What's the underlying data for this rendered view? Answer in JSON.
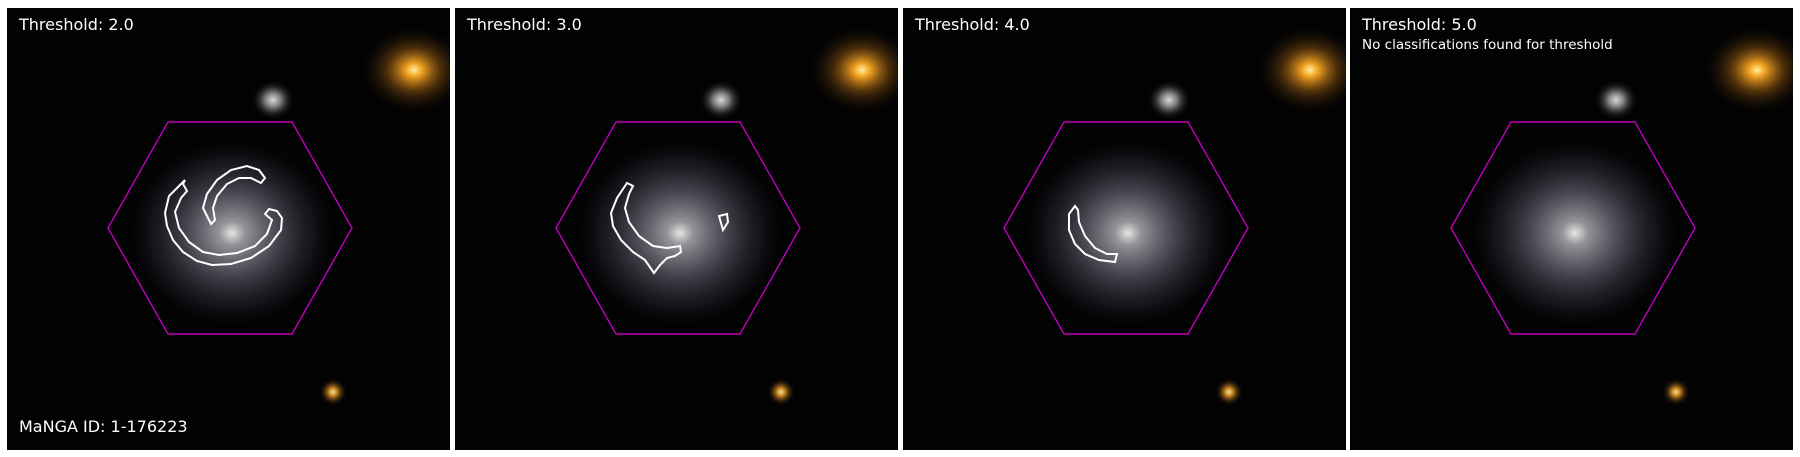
{
  "panels": [
    {
      "title": "Threshold: 2.0",
      "note": ""
    },
    {
      "title": "Threshold: 3.0",
      "note": ""
    },
    {
      "title": "Threshold: 4.0",
      "note": ""
    },
    {
      "title": "Threshold: 5.0",
      "note": "No classifications found for threshold"
    }
  ],
  "manga_id_label": "MaNGA ID: 1-176223",
  "colors": {
    "hexagon": "#c000c0",
    "contour": "#ffffff",
    "background": "#020203",
    "star": "#f0a020"
  },
  "icons": [
    "galaxy-image",
    "hexagon-outline",
    "spiral-arm-contour"
  ]
}
